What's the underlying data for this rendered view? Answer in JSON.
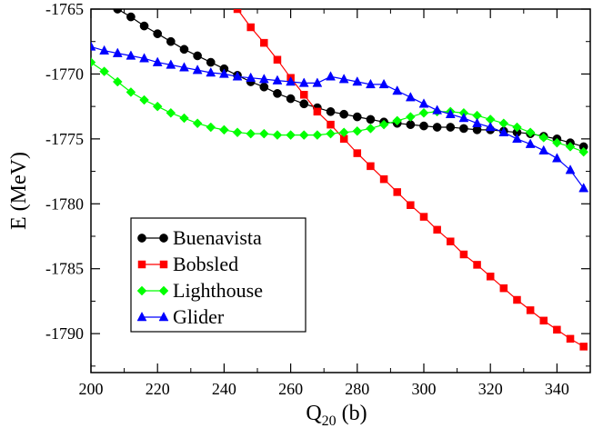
{
  "chart_data": {
    "type": "line",
    "title": "",
    "xlabel": "Q",
    "xlabel_sub": "20",
    "xlabel_unit": " (b)",
    "ylabel": "E (MeV)",
    "xlim": [
      200,
      350
    ],
    "ylim": [
      -1793,
      -1765
    ],
    "xticks": [
      200,
      220,
      240,
      260,
      280,
      300,
      320,
      340
    ],
    "yticks": [
      -1765,
      -1770,
      -1775,
      -1780,
      -1785,
      -1790
    ],
    "grid": false,
    "legend_position": "lower-left",
    "series": [
      {
        "name": "Buenavista",
        "color": "#000000",
        "marker": "circle",
        "x": [
          208,
          212,
          216,
          220,
          224,
          228,
          232,
          236,
          240,
          244,
          248,
          252,
          256,
          260,
          264,
          268,
          272,
          276,
          280,
          284,
          288,
          292,
          296,
          300,
          304,
          308,
          312,
          316,
          320,
          324,
          328,
          332,
          336,
          340,
          344,
          348
        ],
        "y": [
          -1765.0,
          -1765.6,
          -1766.3,
          -1766.9,
          -1767.5,
          -1768.1,
          -1768.6,
          -1769.1,
          -1769.6,
          -1770.1,
          -1770.6,
          -1771.0,
          -1771.5,
          -1771.9,
          -1772.3,
          -1772.6,
          -1772.9,
          -1773.1,
          -1773.3,
          -1773.5,
          -1773.7,
          -1773.8,
          -1773.9,
          -1774.0,
          -1774.1,
          -1774.1,
          -1774.2,
          -1774.3,
          -1774.3,
          -1774.4,
          -1774.5,
          -1774.6,
          -1774.8,
          -1775.0,
          -1775.3,
          -1775.6
        ]
      },
      {
        "name": "Bobsled",
        "color": "#ff0000",
        "marker": "square",
        "x": [
          244,
          248,
          252,
          256,
          260,
          264,
          268,
          272,
          276,
          280,
          284,
          288,
          292,
          296,
          300,
          304,
          308,
          312,
          316,
          320,
          324,
          328,
          332,
          336,
          340,
          344,
          348
        ],
        "y": [
          -1765.0,
          -1766.4,
          -1767.6,
          -1768.9,
          -1770.3,
          -1771.6,
          -1772.9,
          -1773.9,
          -1775.0,
          -1776.1,
          -1777.1,
          -1778.1,
          -1779.1,
          -1780.1,
          -1781.0,
          -1782.0,
          -1782.9,
          -1783.9,
          -1784.7,
          -1785.6,
          -1786.5,
          -1787.4,
          -1788.2,
          -1789.0,
          -1789.7,
          -1790.4,
          -1791.0
        ]
      },
      {
        "name": "Lighthouse",
        "color": "#00ff00",
        "marker": "diamond",
        "x": [
          200,
          204,
          208,
          212,
          216,
          220,
          224,
          228,
          232,
          236,
          240,
          244,
          248,
          252,
          256,
          260,
          264,
          268,
          272,
          276,
          280,
          284,
          288,
          292,
          296,
          300,
          304,
          308,
          312,
          316,
          320,
          324,
          328,
          332,
          336,
          340,
          344,
          348
        ],
        "y": [
          -1769.1,
          -1769.8,
          -1770.6,
          -1771.4,
          -1772.0,
          -1772.5,
          -1773.0,
          -1773.4,
          -1773.8,
          -1774.1,
          -1774.3,
          -1774.5,
          -1774.6,
          -1774.6,
          -1774.7,
          -1774.7,
          -1774.7,
          -1774.7,
          -1774.6,
          -1774.5,
          -1774.4,
          -1774.2,
          -1773.9,
          -1773.6,
          -1773.3,
          -1773.0,
          -1772.9,
          -1772.9,
          -1773.0,
          -1773.2,
          -1773.5,
          -1773.8,
          -1774.1,
          -1774.5,
          -1774.9,
          -1775.3,
          -1775.6,
          -1776.0
        ]
      },
      {
        "name": "Glider",
        "color": "#0000ff",
        "marker": "triangle",
        "x": [
          200,
          204,
          208,
          212,
          216,
          220,
          224,
          228,
          232,
          236,
          240,
          244,
          248,
          252,
          256,
          260,
          264,
          268,
          272,
          276,
          280,
          284,
          288,
          292,
          296,
          300,
          304,
          308,
          312,
          316,
          320,
          324,
          328,
          332,
          336,
          340,
          344,
          348
        ],
        "y": [
          -1767.9,
          -1768.2,
          -1768.4,
          -1768.6,
          -1768.8,
          -1769.1,
          -1769.3,
          -1769.5,
          -1769.7,
          -1769.9,
          -1770.0,
          -1770.2,
          -1770.3,
          -1770.4,
          -1770.5,
          -1770.6,
          -1770.7,
          -1770.7,
          -1770.2,
          -1770.4,
          -1770.6,
          -1770.8,
          -1770.8,
          -1771.3,
          -1771.8,
          -1772.3,
          -1772.8,
          -1773.1,
          -1773.4,
          -1773.8,
          -1774.1,
          -1774.5,
          -1775.0,
          -1775.4,
          -1775.9,
          -1776.5,
          -1777.4,
          -1778.8
        ]
      }
    ]
  }
}
